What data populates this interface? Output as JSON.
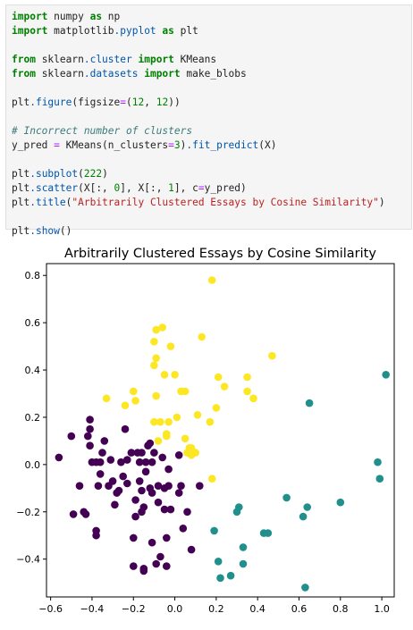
{
  "code_cell": {
    "lines": [
      [
        {
          "c": "kw",
          "t": "import"
        },
        {
          "c": "",
          "t": " numpy "
        },
        {
          "c": "kw",
          "t": "as"
        },
        {
          "c": "",
          "t": " np"
        }
      ],
      [
        {
          "c": "kw",
          "t": "import"
        },
        {
          "c": "",
          "t": " matplotlib"
        },
        {
          "c": "mod",
          "t": ".pyplot"
        },
        {
          "c": "",
          "t": " "
        },
        {
          "c": "kw",
          "t": "as"
        },
        {
          "c": "",
          "t": " plt"
        }
      ],
      [],
      [
        {
          "c": "kw",
          "t": "from"
        },
        {
          "c": "",
          "t": " sklearn"
        },
        {
          "c": "mod",
          "t": ".cluster"
        },
        {
          "c": "",
          "t": " "
        },
        {
          "c": "kw",
          "t": "import"
        },
        {
          "c": "",
          "t": " KMeans"
        }
      ],
      [
        {
          "c": "kw",
          "t": "from"
        },
        {
          "c": "",
          "t": " sklearn"
        },
        {
          "c": "mod",
          "t": ".datasets"
        },
        {
          "c": "",
          "t": " "
        },
        {
          "c": "kw",
          "t": "import"
        },
        {
          "c": "",
          "t": " make_blobs"
        }
      ],
      [],
      [
        {
          "c": "",
          "t": "plt"
        },
        {
          "c": "mod",
          "t": ".figure"
        },
        {
          "c": "",
          "t": "(figsize"
        },
        {
          "c": "op",
          "t": "="
        },
        {
          "c": "",
          "t": "("
        },
        {
          "c": "num",
          "t": "12"
        },
        {
          "c": "",
          "t": ", "
        },
        {
          "c": "num",
          "t": "12"
        },
        {
          "c": "",
          "t": "))"
        }
      ],
      [],
      [
        {
          "c": "cm",
          "t": "# Incorrect number of clusters"
        }
      ],
      [
        {
          "c": "",
          "t": "y_pred "
        },
        {
          "c": "op",
          "t": "="
        },
        {
          "c": "",
          "t": " KMeans(n_clusters"
        },
        {
          "c": "op",
          "t": "="
        },
        {
          "c": "num",
          "t": "3"
        },
        {
          "c": "",
          "t": ")"
        },
        {
          "c": "mod",
          "t": ".fit_predict"
        },
        {
          "c": "",
          "t": "(X)"
        }
      ],
      [],
      [
        {
          "c": "",
          "t": "plt"
        },
        {
          "c": "mod",
          "t": ".subplot"
        },
        {
          "c": "",
          "t": "("
        },
        {
          "c": "num",
          "t": "222"
        },
        {
          "c": "",
          "t": ")"
        }
      ],
      [
        {
          "c": "",
          "t": "plt"
        },
        {
          "c": "mod",
          "t": ".scatter"
        },
        {
          "c": "",
          "t": "(X[:, "
        },
        {
          "c": "num",
          "t": "0"
        },
        {
          "c": "",
          "t": "], X[:, "
        },
        {
          "c": "num",
          "t": "1"
        },
        {
          "c": "",
          "t": "], c"
        },
        {
          "c": "op",
          "t": "="
        },
        {
          "c": "",
          "t": "y_pred)"
        }
      ],
      [
        {
          "c": "",
          "t": "plt"
        },
        {
          "c": "mod",
          "t": ".title"
        },
        {
          "c": "",
          "t": "("
        },
        {
          "c": "str",
          "t": "\"Arbitrarily Clustered Essays by Cosine Similarity\""
        },
        {
          "c": "",
          "t": ")"
        }
      ],
      [],
      [
        {
          "c": "",
          "t": "plt"
        },
        {
          "c": "mod",
          "t": ".show"
        },
        {
          "c": "",
          "t": "()"
        }
      ]
    ]
  },
  "chart_data": {
    "type": "scatter",
    "title": "Arbitrarily Clustered Essays by Cosine Similarity",
    "xlabel": "",
    "ylabel": "",
    "xlim": [
      -0.62,
      1.06
    ],
    "ylim": [
      -0.56,
      0.85
    ],
    "xticks": [
      -0.6,
      -0.4,
      -0.2,
      0.0,
      0.2,
      0.4,
      0.6,
      0.8,
      1.0
    ],
    "xtick_labels": [
      "−0.6",
      "−0.4",
      "−0.2",
      "0.0",
      "0.2",
      "0.4",
      "0.6",
      "0.8",
      "1.0"
    ],
    "yticks": [
      -0.4,
      -0.2,
      0.0,
      0.2,
      0.4,
      0.6,
      0.8
    ],
    "ytick_labels": [
      "−0.4",
      "−0.2",
      "0.0",
      "0.2",
      "0.4",
      "0.6",
      "0.8"
    ],
    "grid": false,
    "colors": {
      "0": "#440154",
      "1": "#21908d",
      "2": "#fde725"
    },
    "points": [
      [
        -0.56,
        0.03,
        0
      ],
      [
        -0.5,
        0.12,
        0
      ],
      [
        -0.49,
        -0.21,
        0
      ],
      [
        -0.46,
        -0.09,
        0
      ],
      [
        -0.44,
        -0.2,
        0
      ],
      [
        -0.43,
        -0.21,
        0
      ],
      [
        -0.42,
        0.12,
        0
      ],
      [
        -0.41,
        0.08,
        0
      ],
      [
        -0.41,
        0.19,
        0
      ],
      [
        -0.41,
        0.15,
        0
      ],
      [
        -0.4,
        0.01,
        0
      ],
      [
        -0.38,
        0.01,
        0
      ],
      [
        -0.38,
        -0.28,
        0
      ],
      [
        -0.38,
        -0.3,
        0
      ],
      [
        -0.37,
        -0.09,
        0
      ],
      [
        -0.36,
        -0.04,
        0
      ],
      [
        -0.36,
        0.01,
        0
      ],
      [
        -0.35,
        0.05,
        0
      ],
      [
        -0.34,
        0.1,
        0
      ],
      [
        -0.32,
        -0.09,
        0
      ],
      [
        -0.31,
        0.02,
        0
      ],
      [
        -0.3,
        -0.07,
        0
      ],
      [
        -0.29,
        -0.17,
        0
      ],
      [
        -0.28,
        -0.12,
        0
      ],
      [
        -0.27,
        -0.11,
        0
      ],
      [
        -0.26,
        0.01,
        0
      ],
      [
        -0.25,
        -0.05,
        0
      ],
      [
        -0.24,
        0.15,
        0
      ],
      [
        -0.23,
        0.02,
        0
      ],
      [
        -0.23,
        -0.08,
        0
      ],
      [
        -0.21,
        0.05,
        0
      ],
      [
        -0.2,
        -0.31,
        0
      ],
      [
        -0.2,
        -0.43,
        0
      ],
      [
        -0.19,
        -0.15,
        0
      ],
      [
        -0.19,
        -0.22,
        0
      ],
      [
        -0.18,
        0.05,
        0
      ],
      [
        -0.17,
        -0.07,
        0
      ],
      [
        -0.17,
        0.01,
        0
      ],
      [
        -0.16,
        -0.2,
        0
      ],
      [
        -0.16,
        -0.11,
        0
      ],
      [
        -0.16,
        0.05,
        0
      ],
      [
        -0.15,
        -0.18,
        0
      ],
      [
        -0.15,
        -0.44,
        0
      ],
      [
        -0.15,
        -0.45,
        0
      ],
      [
        -0.14,
        -0.03,
        0
      ],
      [
        -0.14,
        0.01,
        0
      ],
      [
        -0.13,
        0.08,
        0
      ],
      [
        -0.12,
        0.09,
        0
      ],
      [
        -0.12,
        -0.1,
        0
      ],
      [
        -0.11,
        -0.12,
        0
      ],
      [
        -0.11,
        0.01,
        0
      ],
      [
        -0.11,
        -0.33,
        0
      ],
      [
        -0.1,
        0.05,
        0
      ],
      [
        -0.09,
        -0.42,
        0
      ],
      [
        -0.08,
        -0.09,
        0
      ],
      [
        -0.08,
        -0.16,
        0
      ],
      [
        -0.07,
        -0.39,
        0
      ],
      [
        -0.06,
        0.03,
        0
      ],
      [
        -0.05,
        -0.1,
        0
      ],
      [
        -0.05,
        -0.19,
        0
      ],
      [
        -0.04,
        -0.43,
        0
      ],
      [
        -0.04,
        -0.31,
        0
      ],
      [
        -0.03,
        -0.02,
        0
      ],
      [
        -0.03,
        -0.09,
        0
      ],
      [
        -0.02,
        -0.19,
        0
      ],
      [
        0.02,
        0.04,
        0
      ],
      [
        0.02,
        -0.12,
        0
      ],
      [
        0.03,
        -0.09,
        0
      ],
      [
        0.04,
        -0.27,
        0
      ],
      [
        0.06,
        -0.2,
        0
      ],
      [
        0.08,
        -0.36,
        0
      ],
      [
        0.12,
        -0.09,
        0
      ],
      [
        0.19,
        -0.28,
        1
      ],
      [
        0.21,
        -0.41,
        1
      ],
      [
        0.22,
        -0.48,
        1
      ],
      [
        0.27,
        -0.47,
        1
      ],
      [
        0.3,
        -0.2,
        1
      ],
      [
        0.31,
        -0.18,
        1
      ],
      [
        0.33,
        -0.35,
        1
      ],
      [
        0.33,
        -0.42,
        1
      ],
      [
        0.43,
        -0.29,
        1
      ],
      [
        0.45,
        -0.29,
        1
      ],
      [
        0.54,
        -0.14,
        1
      ],
      [
        0.62,
        -0.22,
        1
      ],
      [
        0.63,
        -0.52,
        1
      ],
      [
        0.64,
        -0.18,
        1
      ],
      [
        0.65,
        0.26,
        1
      ],
      [
        0.8,
        -0.16,
        1
      ],
      [
        0.98,
        0.01,
        1
      ],
      [
        0.99,
        -0.06,
        1
      ],
      [
        1.02,
        0.38,
        1
      ],
      [
        -0.33,
        0.28,
        2
      ],
      [
        -0.24,
        0.25,
        2
      ],
      [
        -0.2,
        0.31,
        2
      ],
      [
        -0.19,
        0.27,
        2
      ],
      [
        -0.1,
        0.18,
        2
      ],
      [
        -0.1,
        0.52,
        2
      ],
      [
        -0.1,
        0.42,
        2
      ],
      [
        -0.09,
        0.45,
        2
      ],
      [
        -0.09,
        0.57,
        2
      ],
      [
        -0.09,
        0.29,
        2
      ],
      [
        -0.08,
        0.1,
        2
      ],
      [
        -0.07,
        0.18,
        2
      ],
      [
        -0.06,
        0.58,
        2
      ],
      [
        -0.05,
        0.38,
        2
      ],
      [
        -0.04,
        0.13,
        2
      ],
      [
        -0.04,
        0.12,
        2
      ],
      [
        -0.03,
        0.18,
        2
      ],
      [
        -0.02,
        0.5,
        2
      ],
      [
        0.0,
        0.38,
        2
      ],
      [
        0.01,
        0.2,
        2
      ],
      [
        0.03,
        0.31,
        2
      ],
      [
        0.05,
        0.11,
        2
      ],
      [
        0.05,
        0.31,
        2
      ],
      [
        0.06,
        0.05,
        2
      ],
      [
        0.07,
        0.07,
        2
      ],
      [
        0.08,
        0.07,
        2
      ],
      [
        0.08,
        0.04,
        2
      ],
      [
        0.1,
        0.05,
        2
      ],
      [
        0.11,
        0.21,
        2
      ],
      [
        0.13,
        0.54,
        2
      ],
      [
        0.17,
        0.18,
        2
      ],
      [
        0.18,
        -0.06,
        2
      ],
      [
        0.18,
        0.78,
        2
      ],
      [
        0.2,
        0.24,
        2
      ],
      [
        0.21,
        0.37,
        2
      ],
      [
        0.24,
        0.33,
        2
      ],
      [
        0.35,
        0.37,
        2
      ],
      [
        0.35,
        0.31,
        2
      ],
      [
        0.38,
        0.28,
        2
      ],
      [
        0.47,
        0.46,
        2
      ]
    ]
  }
}
